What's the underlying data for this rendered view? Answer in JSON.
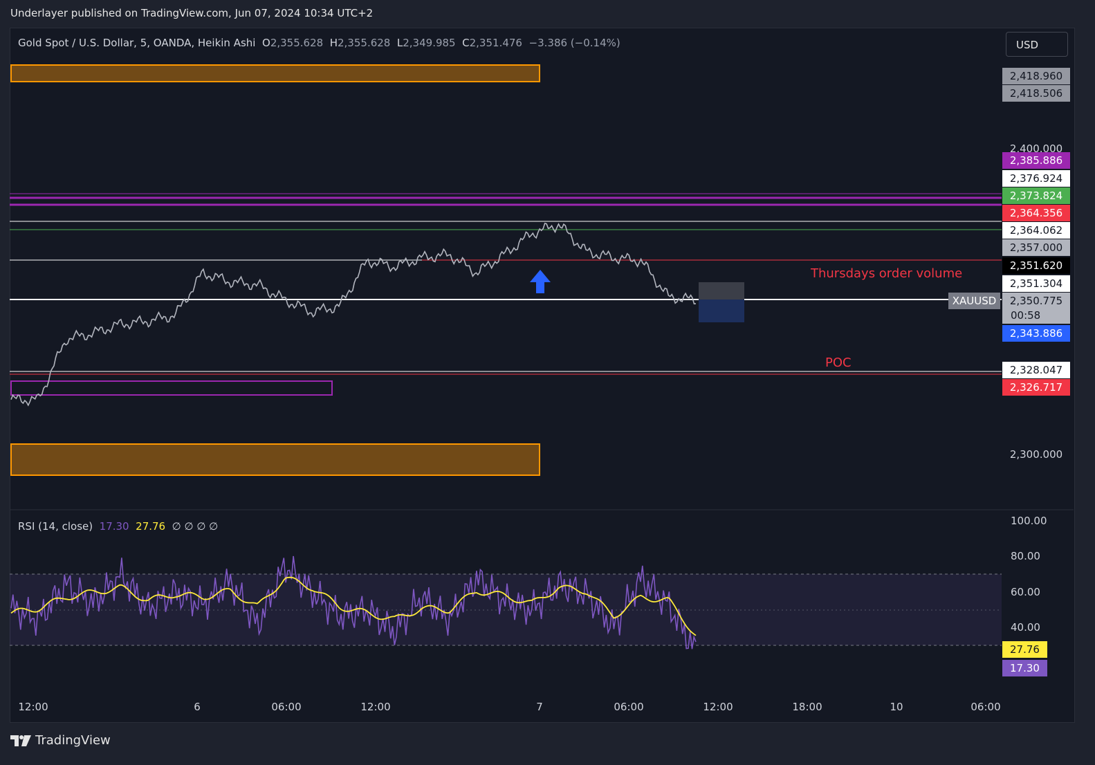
{
  "header": {
    "published": "Underlayer published on TradingView.com, Jun 07, 2024 10:34 UTC+2"
  },
  "legend": {
    "symbol": "Gold Spot / U.S. Dollar, 5, OANDA, Heikin Ashi",
    "o_label": "O",
    "o": "2,355.628",
    "h_label": "H",
    "h": "2,355.628",
    "l_label": "L",
    "l": "2,349.985",
    "c_label": "C",
    "c": "2,351.476",
    "change": "−3.386 (−0.14%)"
  },
  "currency_button": "USD",
  "colors": {
    "background": "#141823",
    "purple": "#9c27b0",
    "orange": "#ff9800",
    "red": "#f23645",
    "green": "#4caf50",
    "blue": "#2962ff",
    "rsi": "#7e57c2",
    "rsi_ma": "#ffeb3b"
  },
  "price_axis": {
    "ticks": [
      "2,400.000",
      "2,300.000"
    ],
    "labels": [
      {
        "text": "2,418.960",
        "bg": "#9598a1",
        "fg": "#131722"
      },
      {
        "text": "2,418.506",
        "bg": "#9598a1",
        "fg": "#131722"
      },
      {
        "text": "2,385.886",
        "bg": "#9c27b0",
        "fg": "#ffffff"
      },
      {
        "text": "2,376.924",
        "bg": "#ffffff",
        "fg": "#131722"
      },
      {
        "text": "2,373.824",
        "bg": "#4caf50",
        "fg": "#ffffff"
      },
      {
        "text": "2,364.356",
        "bg": "#f23645",
        "fg": "#ffffff"
      },
      {
        "text": "2,364.062",
        "bg": "#ffffff",
        "fg": "#131722"
      },
      {
        "text": "2,357.000",
        "bg": "#b2b5be",
        "fg": "#131722"
      },
      {
        "text": "2,351.620",
        "bg": "#000000",
        "fg": "#ffffff"
      },
      {
        "text": "2,351.304",
        "bg": "#ffffff",
        "fg": "#131722"
      },
      {
        "text": "2,350.775",
        "bg": "#b2b5be",
        "fg": "#131722"
      },
      {
        "text": "2,343.886",
        "bg": "#2962ff",
        "fg": "#ffffff"
      },
      {
        "text": "2,328.047",
        "bg": "#ffffff",
        "fg": "#131722"
      },
      {
        "text": "2,326.717",
        "bg": "#f23645",
        "fg": "#ffffff"
      }
    ],
    "countdown": "00:58",
    "ticker": "XAUUSD"
  },
  "annotations": {
    "order_volume": "Thursdays order volume",
    "poc": "POC"
  },
  "rsi": {
    "name": "RSI (14, close)",
    "value": "17.30",
    "ma_value": "27.76",
    "extras": "∅ ∅ ∅ ∅",
    "ticks": [
      "100.00",
      "80.00",
      "60.00",
      "40.00"
    ],
    "levels": [
      70,
      50,
      30
    ]
  },
  "time_axis": [
    "12:00",
    "6",
    "06:00",
    "12:00",
    "7",
    "06:00",
    "12:00",
    "18:00",
    "10",
    "06:00"
  ],
  "branding": "TradingView",
  "chart_data": {
    "type": "line",
    "symbol": "XAUUSD",
    "price_series_anchors": [
      {
        "t": "Jun 5 12:00",
        "price": 2318
      },
      {
        "t": "Jun 5 16:00",
        "price": 2318
      },
      {
        "t": "Jun 5 20:00",
        "price": 2338
      },
      {
        "t": "Jun 5 22:00",
        "price": 2340
      },
      {
        "t": "Jun 6 00:00",
        "price": 2343
      },
      {
        "t": "Jun 6 02:00",
        "price": 2344
      },
      {
        "t": "Jun 6 03:00",
        "price": 2346
      },
      {
        "t": "Jun 6 04:00",
        "price": 2360
      },
      {
        "t": "Jun 6 06:00",
        "price": 2357
      },
      {
        "t": "Jun 6 08:00",
        "price": 2356
      },
      {
        "t": "Jun 6 10:00",
        "price": 2351
      },
      {
        "t": "Jun 6 14:00",
        "price": 2347
      },
      {
        "t": "Jun 6 16:00",
        "price": 2349
      },
      {
        "t": "Jun 6 18:00",
        "price": 2364
      },
      {
        "t": "Jun 6 22:00",
        "price": 2362
      },
      {
        "t": "Jun 7 02:00",
        "price": 2365
      },
      {
        "t": "Jun 7 04:00",
        "price": 2366
      },
      {
        "t": "Jun 7 05:00",
        "price": 2360
      },
      {
        "t": "Jun 7 06:30",
        "price": 2366
      },
      {
        "t": "Jun 7 07:00",
        "price": 2373
      },
      {
        "t": "Jun 7 07:30",
        "price": 2376
      },
      {
        "t": "Jun 7 08:00",
        "price": 2367
      },
      {
        "t": "Jun 7 09:00",
        "price": 2365
      },
      {
        "t": "Jun 7 10:00",
        "price": 2364
      },
      {
        "t": "Jun 7 10:20",
        "price": 2352
      },
      {
        "t": "Jun 7 10:34",
        "price": 2351
      }
    ],
    "horizontal_levels": [
      2376.924,
      2373.824,
      2364.356,
      2364.062,
      2357.0,
      2351.62,
      2351.304,
      2343.886,
      2328.047,
      2326.717
    ],
    "zones": [
      {
        "label": "supply",
        "from": 2417,
        "to": 2422
      },
      {
        "label": "demand",
        "from": 2293,
        "to": 2303
      },
      {
        "label": "purple box",
        "from": 2322,
        "to": 2326
      }
    ],
    "ylim": [
      2290,
      2432
    ],
    "rsi_anchors": [
      45,
      38,
      60,
      48,
      66,
      45,
      55,
      47,
      62,
      34,
      72,
      55,
      40,
      44,
      30,
      52,
      38,
      64,
      50,
      44,
      60,
      54,
      33,
      64,
      47,
      18
    ],
    "rsi_ma_anchors": [
      42,
      45,
      52,
      55,
      58,
      50,
      54,
      52,
      56,
      46,
      64,
      58,
      46,
      42,
      38,
      45,
      44,
      56,
      53,
      48,
      58,
      56,
      40,
      52,
      50,
      28
    ],
    "rsi_ylim": [
      0,
      100
    ]
  }
}
